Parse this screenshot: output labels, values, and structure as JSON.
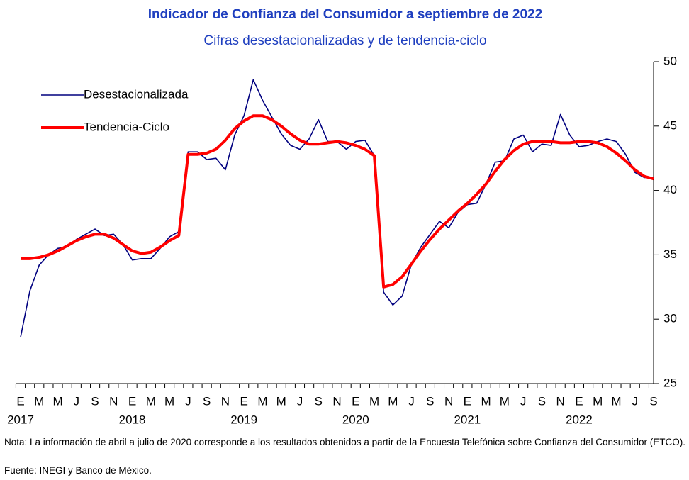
{
  "chart_data": {
    "type": "line",
    "title": "Indicador de Confianza del Consumidor a septiembre de 2022",
    "subtitle": "Cifras desestacionalizadas y de tendencia-ciclo",
    "categories": [
      "E",
      null,
      "M",
      null,
      "M",
      null,
      "J",
      null,
      "S",
      null,
      "N",
      null,
      "E",
      null,
      "M",
      null,
      "M",
      null,
      "J",
      null,
      "S",
      null,
      "N",
      null,
      "E",
      null,
      "M",
      null,
      "M",
      null,
      "J",
      null,
      "S",
      null,
      "N",
      null,
      "E",
      null,
      "M",
      null,
      "M",
      null,
      "J",
      null,
      "S",
      null,
      "N",
      null,
      "E",
      null,
      "M",
      null,
      "M",
      null,
      "J",
      null,
      "S",
      null,
      "N",
      null,
      "E",
      null,
      "M",
      null,
      "M",
      null,
      "J",
      null,
      "S"
    ],
    "years": [
      "2017",
      "2018",
      "2019",
      "2020",
      "2021",
      "2022"
    ],
    "series": [
      {
        "name": "Desestacionalizada",
        "color": "#00007f",
        "width": 1.6,
        "values": [
          28.6,
          32.2,
          34.2,
          35.0,
          35.5,
          35.6,
          36.2,
          36.6,
          37.0,
          36.5,
          36.6,
          35.8,
          34.6,
          34.7,
          34.7,
          35.5,
          36.4,
          36.8,
          43.0,
          43.0,
          42.4,
          42.5,
          41.6,
          44.3,
          45.8,
          48.6,
          47.0,
          45.7,
          44.4,
          43.5,
          43.2,
          44.0,
          45.5,
          43.8,
          43.8,
          43.2,
          43.8,
          43.9,
          42.7,
          32.1,
          31.1,
          31.8,
          34.3,
          35.6,
          36.6,
          37.6,
          37.1,
          38.3,
          38.9,
          39.0,
          40.5,
          42.2,
          42.3,
          44.0,
          44.3,
          43.0,
          43.6,
          43.5,
          45.9,
          44.3,
          43.4,
          43.5,
          43.8,
          44.0,
          43.8,
          42.8,
          41.4,
          41.0,
          41.0
        ]
      },
      {
        "name": "Tendencia-Ciclo",
        "color": "#ff0000",
        "width": 4,
        "values": [
          34.7,
          34.7,
          34.8,
          35.0,
          35.3,
          35.7,
          36.1,
          36.4,
          36.6,
          36.6,
          36.3,
          35.8,
          35.3,
          35.1,
          35.2,
          35.6,
          36.1,
          36.5,
          42.8,
          42.8,
          42.9,
          43.2,
          43.9,
          44.8,
          45.4,
          45.8,
          45.8,
          45.5,
          45.0,
          44.4,
          43.9,
          43.6,
          43.6,
          43.7,
          43.8,
          43.7,
          43.5,
          43.2,
          42.7,
          32.5,
          32.7,
          33.3,
          34.3,
          35.3,
          36.2,
          37.0,
          37.7,
          38.4,
          39.0,
          39.7,
          40.5,
          41.5,
          42.4,
          43.1,
          43.6,
          43.8,
          43.8,
          43.8,
          43.7,
          43.7,
          43.8,
          43.8,
          43.7,
          43.4,
          42.9,
          42.3,
          41.6,
          41.1,
          40.9
        ]
      }
    ],
    "ylim": [
      25,
      50
    ],
    "yticks": [
      25,
      30,
      35,
      40,
      45,
      50
    ],
    "y_axis_side": "right",
    "legend": "upper left",
    "note": "Nota: La información de abril a julio de 2020 corresponde a los resultados obtenidos a partir de la Encuesta Telefónica sobre Confianza del Consumidor (ETCO).",
    "source": "Fuente: INEGI y Banco de México."
  }
}
